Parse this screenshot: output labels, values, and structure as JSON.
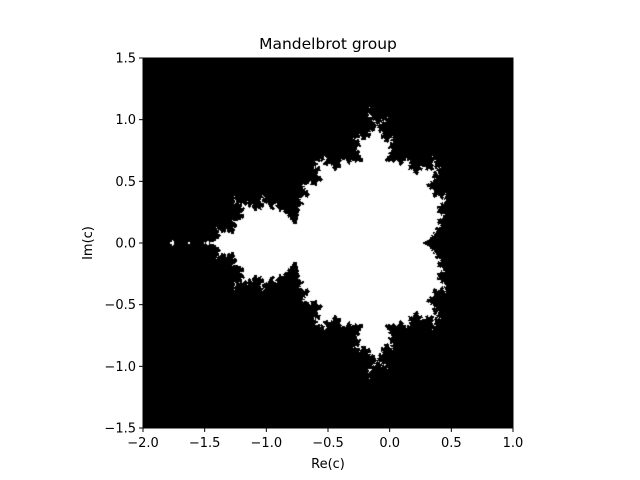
{
  "chart_data": {
    "type": "heatmap",
    "title": "Mandelbrot group",
    "xlabel": "Re(c)",
    "ylabel": "Im(c)",
    "xlim": [
      -2.0,
      1.0
    ],
    "ylim": [
      -1.5,
      1.5
    ],
    "xticks": [
      -2.0,
      -1.5,
      -1.0,
      -0.5,
      0.0,
      0.5,
      1.0
    ],
    "yticks": [
      -1.5,
      -1.0,
      -0.5,
      0.0,
      0.5,
      1.0,
      1.5
    ],
    "xtick_labels": [
      "−2.0",
      "−1.5",
      "−1.0",
      "−0.5",
      "0.0",
      "0.5",
      "1.0"
    ],
    "ytick_labels": [
      "−1.5",
      "−1.0",
      "−0.5",
      "0.0",
      "0.5",
      "1.0",
      "1.5"
    ],
    "grid": false,
    "colors": {
      "inside_set": "#ffffff",
      "outside_set": "#000000"
    }
  }
}
